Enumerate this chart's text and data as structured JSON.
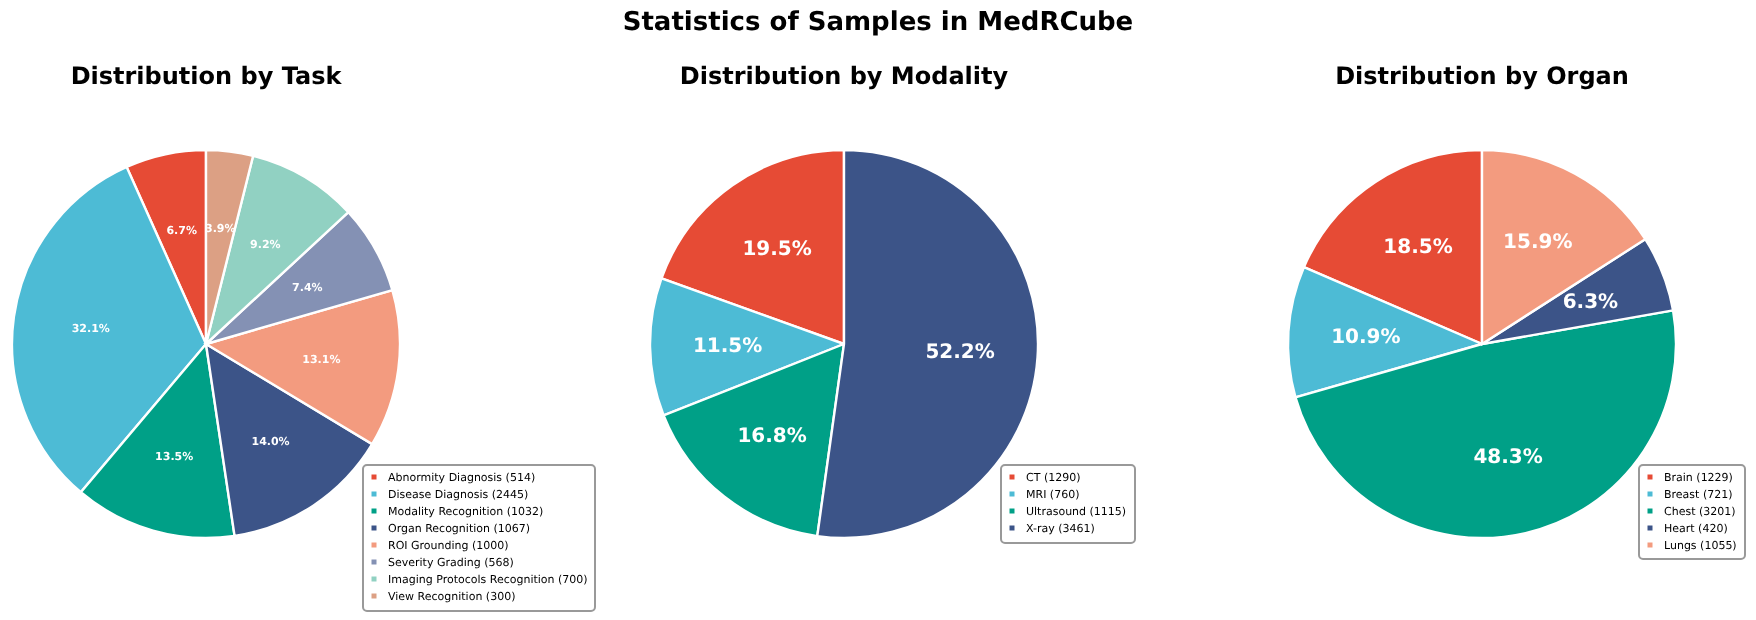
{
  "chart_data": [
    {
      "type": "pie",
      "title": "Distribution by Task",
      "annotations": [
        "Statistics of Samples in MedRCube"
      ],
      "categories": [
        "Abnormity Diagnosis (514)",
        "Disease Diagnosis (2445)",
        "Modality Recognition (1032)",
        "Organ Recognition (1067)",
        "ROI Grounding (1000)",
        "Severity Grading (568)",
        "Imaging Protocols Recognition (700)",
        "View Recognition (300)"
      ],
      "values": [
        6.7,
        32.1,
        13.5,
        14.0,
        13.1,
        7.4,
        9.2,
        3.9
      ],
      "value_labels": [
        "6.7%",
        "32.1%",
        "13.5%",
        "14.0%",
        "13.1%",
        "7.4%",
        "9.2%",
        "3.9%"
      ],
      "colors": [
        "#e64b35",
        "#4dbbd5",
        "#00a087",
        "#3c5488",
        "#f39b7f",
        "#8491b4",
        "#91d1c2",
        "#dca084"
      ],
      "legend": "bottom right"
    },
    {
      "type": "pie",
      "title": "Distribution by Modality",
      "categories": [
        "CT (1290)",
        "MRI (760)",
        "Ultrasound (1115)",
        "X-ray (3461)"
      ],
      "values": [
        19.5,
        11.5,
        16.8,
        52.2
      ],
      "value_labels": [
        "19.5%",
        "11.5%",
        "16.8%",
        "52.2%"
      ],
      "colors": [
        "#e64b35",
        "#4dbbd5",
        "#00a087",
        "#3c5488"
      ],
      "legend": "bottom right"
    },
    {
      "type": "pie",
      "title": "Distribution by Organ",
      "categories": [
        "Brain (1229)",
        "Breast (721)",
        "Chest (3201)",
        "Heart (420)",
        "Lungs (1055)"
      ],
      "values": [
        18.5,
        10.9,
        48.3,
        6.3,
        15.9
      ],
      "value_labels": [
        "18.5%",
        "10.9%",
        "48.3%",
        "6.3%",
        "15.9%"
      ],
      "colors": [
        "#e64b35",
        "#4dbbd5",
        "#00a087",
        "#3c5488",
        "#f39b7f"
      ],
      "legend": "bottom right"
    }
  ]
}
